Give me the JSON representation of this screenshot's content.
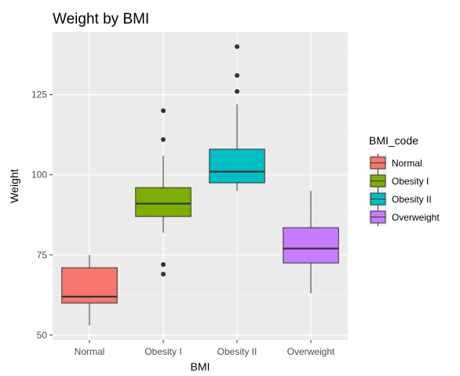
{
  "chart_data": {
    "type": "box",
    "title": "Weight by BMI",
    "xlabel": "BMI",
    "ylabel": "Weight",
    "ylim": [
      48.5,
      144.5
    ],
    "yticks": [
      50,
      75,
      100,
      125
    ],
    "grid": true,
    "legend_title": "BMI_code",
    "legend_position": "right",
    "categories": [
      "Normal",
      "Obesity I",
      "Obesity II",
      "Overweight"
    ],
    "series": [
      {
        "name": "Normal",
        "color": "#F8766D",
        "whisker_low": 53,
        "q1": 60,
        "median": 62,
        "q3": 71,
        "whisker_high": 75,
        "outliers": []
      },
      {
        "name": "Obesity I",
        "color": "#7CAE00",
        "whisker_low": 82,
        "q1": 87,
        "median": 91,
        "q3": 96,
        "whisker_high": 106,
        "outliers": [
          69,
          72,
          111,
          120
        ]
      },
      {
        "name": "Obesity II",
        "color": "#00BFC4",
        "whisker_low": 95,
        "q1": 97.5,
        "median": 101,
        "q3": 108,
        "whisker_high": 122,
        "outliers": [
          126,
          131,
          140
        ]
      },
      {
        "name": "Overweight",
        "color": "#C77CFF",
        "whisker_low": 63,
        "q1": 72.5,
        "median": 77,
        "q3": 83.5,
        "whisker_high": 95,
        "outliers": []
      }
    ]
  }
}
